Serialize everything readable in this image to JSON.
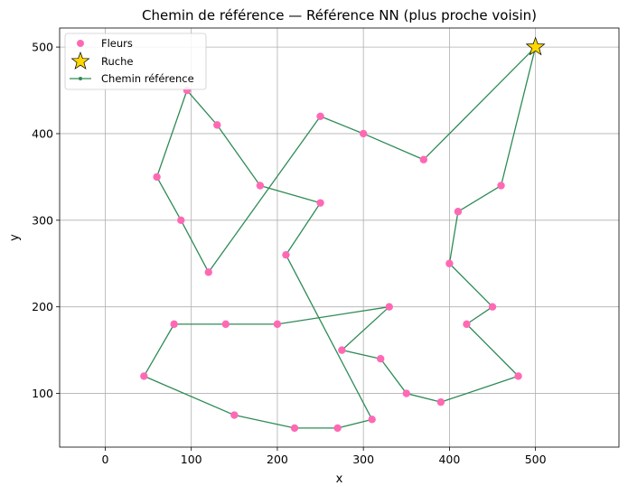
{
  "chart_data": {
    "type": "line",
    "title": "Chemin de référence — Référence NN (plus proche voisin)",
    "xlabel": "x",
    "ylabel": "y",
    "xlim": [
      -53,
      597
    ],
    "ylim": [
      38,
      522
    ],
    "xticks": [
      0,
      100,
      200,
      300,
      400,
      500
    ],
    "yticks": [
      100,
      200,
      300,
      400,
      500
    ],
    "grid": true,
    "legend_position": "top-left",
    "colors": {
      "flowers": "#ff69b4",
      "hive_fill": "#ffd700",
      "hive_edge": "#000000",
      "path": "#2e8b57",
      "grid": "#b0b0b0",
      "axes": "#000000"
    },
    "legend": [
      {
        "label": "Fleurs",
        "marker": "circle"
      },
      {
        "label": "Ruche",
        "marker": "star"
      },
      {
        "label": "Chemin référence",
        "marker": "line"
      }
    ],
    "hive": {
      "name": "Ruche",
      "x": 500,
      "y": 500
    },
    "flowers": {
      "name": "Fleurs",
      "points": [
        [
          95,
          450
        ],
        [
          130,
          410
        ],
        [
          60,
          350
        ],
        [
          88,
          300
        ],
        [
          120,
          240
        ],
        [
          180,
          340
        ],
        [
          250,
          320
        ],
        [
          210,
          260
        ],
        [
          250,
          420
        ],
        [
          300,
          400
        ],
        [
          370,
          370
        ],
        [
          460,
          340
        ],
        [
          410,
          310
        ],
        [
          400,
          250
        ],
        [
          450,
          200
        ],
        [
          420,
          180
        ],
        [
          480,
          120
        ],
        [
          390,
          90
        ],
        [
          350,
          100
        ],
        [
          320,
          140
        ],
        [
          275,
          150
        ],
        [
          330,
          200
        ],
        [
          200,
          180
        ],
        [
          140,
          180
        ],
        [
          80,
          180
        ],
        [
          45,
          120
        ],
        [
          150,
          75
        ],
        [
          220,
          60
        ],
        [
          270,
          60
        ],
        [
          310,
          70
        ]
      ]
    },
    "path": {
      "name": "Chemin référence",
      "points": [
        [
          500,
          500
        ],
        [
          370,
          370
        ],
        [
          300,
          400
        ],
        [
          250,
          420
        ],
        [
          120,
          240
        ],
        [
          88,
          300
        ],
        [
          60,
          350
        ],
        [
          95,
          450
        ],
        [
          130,
          410
        ],
        [
          180,
          340
        ],
        [
          250,
          320
        ],
        [
          210,
          260
        ],
        [
          310,
          70
        ],
        [
          270,
          60
        ],
        [
          220,
          60
        ],
        [
          150,
          75
        ],
        [
          45,
          120
        ],
        [
          80,
          180
        ],
        [
          140,
          180
        ],
        [
          200,
          180
        ],
        [
          330,
          200
        ],
        [
          275,
          150
        ],
        [
          320,
          140
        ],
        [
          350,
          100
        ],
        [
          390,
          90
        ],
        [
          480,
          120
        ],
        [
          420,
          180
        ],
        [
          450,
          200
        ],
        [
          400,
          250
        ],
        [
          410,
          310
        ],
        [
          460,
          340
        ],
        [
          500,
          500
        ]
      ]
    }
  }
}
